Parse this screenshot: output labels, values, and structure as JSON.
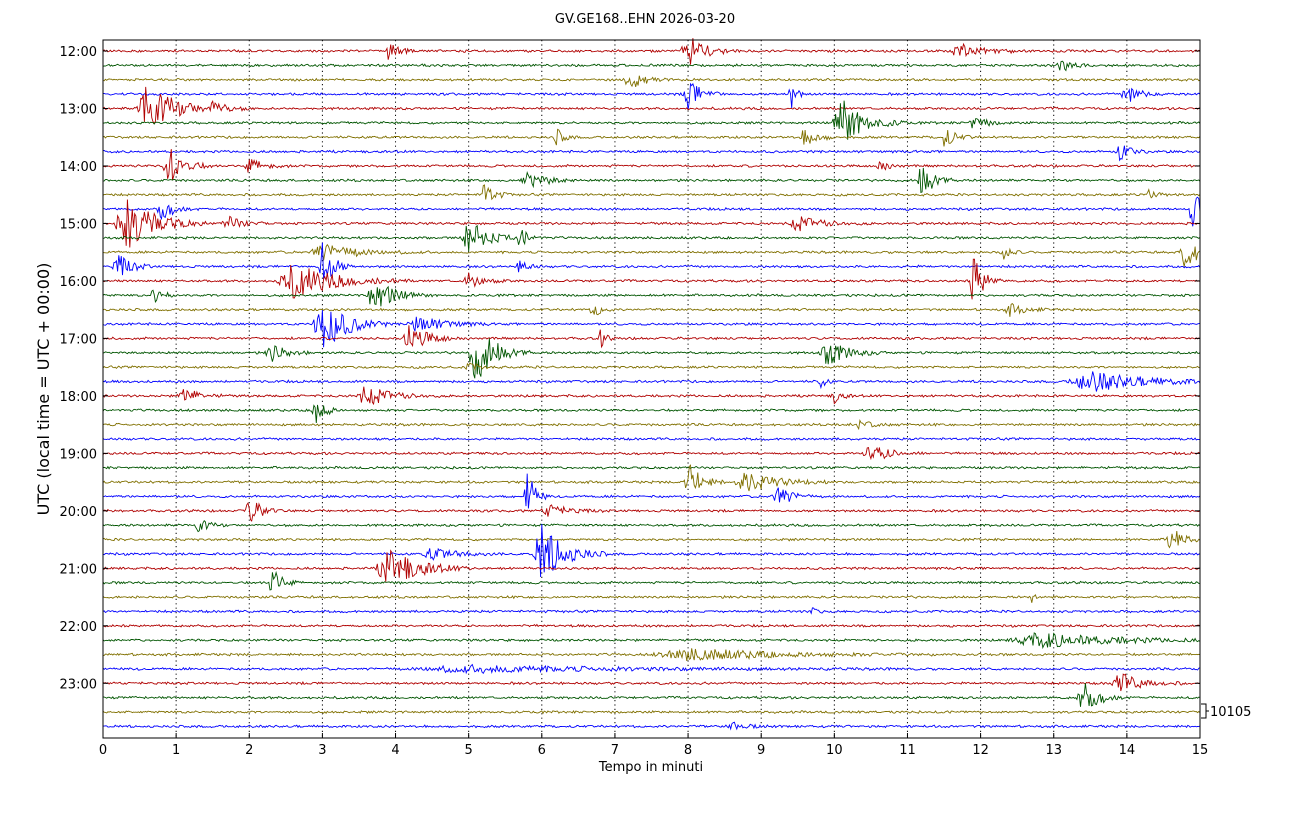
{
  "title": "GV.GE168..EHN 2026-03-20",
  "chart_data": {
    "type": "line",
    "title": "GV.GE168..EHN 2026-03-20",
    "xlabel": "Tempo in minuti",
    "ylabel": "UTC (local time = UTC + 00:00)",
    "xlim": [
      0,
      15
    ],
    "x_ticks": [
      "0",
      "1",
      "2",
      "3",
      "4",
      "5",
      "6",
      "7",
      "8",
      "9",
      "10",
      "11",
      "12",
      "13",
      "14",
      "15"
    ],
    "y_ticks": [
      "12:00",
      "13:00",
      "14:00",
      "15:00",
      "16:00",
      "17:00",
      "18:00",
      "19:00",
      "20:00",
      "21:00",
      "22:00",
      "23:00"
    ],
    "scale_label": "10105",
    "grid": "vertical dotted lines at each minute",
    "trace_minutes": 15,
    "colors": [
      "#b00000",
      "#005500",
      "#807000",
      "#0000ff"
    ],
    "traces": [
      {
        "start": "12:00",
        "color": "#b00000",
        "events": [
          [
            3.9,
            0.3,
            0.4
          ],
          [
            8.0,
            0.6,
            0.7
          ],
          [
            11.7,
            0.25,
            1.0
          ]
        ]
      },
      {
        "start": "12:15",
        "color": "#005500",
        "events": [
          [
            13.1,
            0.25,
            0.4
          ]
        ]
      },
      {
        "start": "12:30",
        "color": "#807000",
        "events": [
          [
            7.2,
            0.35,
            0.6
          ]
        ]
      },
      {
        "start": "12:45",
        "color": "#0000ff",
        "events": [
          [
            8.0,
            0.55,
            0.5
          ],
          [
            9.4,
            0.6,
            0.2
          ],
          [
            14.0,
            0.3,
            0.6
          ]
        ]
      },
      {
        "start": "13:00",
        "color": "#b00000",
        "events": [
          [
            0.6,
            1.0,
            1.0
          ],
          [
            1.5,
            0.25,
            0.6
          ]
        ]
      },
      {
        "start": "13:15",
        "color": "#005500",
        "events": [
          [
            10.1,
            0.85,
            0.9
          ],
          [
            11.9,
            0.25,
            0.5
          ]
        ]
      },
      {
        "start": "13:30",
        "color": "#807000",
        "events": [
          [
            6.2,
            0.3,
            0.3
          ],
          [
            9.6,
            0.35,
            0.5
          ],
          [
            11.5,
            0.3,
            0.5
          ]
        ]
      },
      {
        "start": "13:45",
        "color": "#0000ff",
        "events": [
          [
            13.9,
            0.35,
            0.4
          ]
        ]
      },
      {
        "start": "14:00",
        "color": "#b00000",
        "events": [
          [
            0.9,
            0.7,
            0.6
          ],
          [
            2.0,
            0.25,
            0.6
          ],
          [
            10.6,
            0.2,
            0.4
          ]
        ]
      },
      {
        "start": "14:15",
        "color": "#005500",
        "events": [
          [
            5.8,
            0.35,
            0.7
          ],
          [
            11.2,
            0.65,
            0.5
          ]
        ]
      },
      {
        "start": "14:30",
        "color": "#807000",
        "events": [
          [
            5.2,
            0.45,
            0.4
          ],
          [
            14.3,
            0.2,
            0.3
          ]
        ]
      },
      {
        "start": "14:45",
        "color": "#0000ff",
        "events": [
          [
            0.8,
            0.35,
            0.5
          ],
          [
            14.9,
            0.7,
            0.4
          ]
        ]
      },
      {
        "start": "15:00",
        "color": "#b00000",
        "events": [
          [
            0.3,
            1.0,
            1.1
          ],
          [
            1.7,
            0.25,
            0.6
          ],
          [
            9.5,
            0.25,
            1.0
          ]
        ]
      },
      {
        "start": "15:15",
        "color": "#005500",
        "events": [
          [
            5.0,
            0.6,
            0.8
          ],
          [
            5.7,
            0.35,
            0.3
          ]
        ]
      },
      {
        "start": "15:30",
        "color": "#807000",
        "events": [
          [
            3.0,
            0.25,
            1.5
          ],
          [
            12.3,
            0.3,
            0.3
          ],
          [
            14.8,
            0.6,
            0.5
          ]
        ]
      },
      {
        "start": "15:45",
        "color": "#0000ff",
        "events": [
          [
            0.2,
            0.45,
            0.5
          ],
          [
            3.0,
            1.0,
            0.4
          ],
          [
            5.7,
            0.3,
            0.3
          ]
        ]
      },
      {
        "start": "16:00",
        "color": "#b00000",
        "events": [
          [
            2.6,
            0.6,
            1.6
          ],
          [
            5.0,
            0.25,
            0.6
          ],
          [
            11.9,
            1.0,
            0.4
          ]
        ]
      },
      {
        "start": "16:15",
        "color": "#005500",
        "events": [
          [
            0.7,
            0.45,
            0.3
          ],
          [
            3.7,
            0.55,
            0.8
          ]
        ]
      },
      {
        "start": "16:30",
        "color": "#807000",
        "events": [
          [
            6.7,
            0.3,
            0.3
          ],
          [
            12.4,
            0.2,
            0.6
          ]
        ]
      },
      {
        "start": "16:45",
        "color": "#0000ff",
        "events": [
          [
            3.0,
            1.0,
            0.9
          ],
          [
            4.3,
            0.3,
            1.0
          ]
        ]
      },
      {
        "start": "17:00",
        "color": "#b00000",
        "events": [
          [
            4.2,
            0.5,
            0.7
          ],
          [
            6.8,
            0.35,
            0.2
          ]
        ]
      },
      {
        "start": "17:15",
        "color": "#005500",
        "events": [
          [
            5.1,
            1.0,
            0.8
          ],
          [
            9.9,
            0.45,
            0.8
          ],
          [
            2.3,
            0.3,
            0.6
          ]
        ]
      },
      {
        "start": "17:30",
        "color": "#807000",
        "events": [
          [
            5.0,
            0.15,
            0.4
          ]
        ]
      },
      {
        "start": "17:45",
        "color": "#0000ff",
        "events": [
          [
            9.8,
            0.3,
            0.2
          ],
          [
            13.5,
            0.35,
            2.2
          ]
        ]
      },
      {
        "start": "18:00",
        "color": "#b00000",
        "events": [
          [
            1.1,
            0.3,
            0.6
          ],
          [
            3.6,
            0.35,
            1.0
          ],
          [
            10.0,
            0.25,
            0.3
          ]
        ]
      },
      {
        "start": "18:15",
        "color": "#005500",
        "events": [
          [
            2.9,
            0.85,
            0.3
          ]
        ]
      },
      {
        "start": "18:30",
        "color": "#807000",
        "events": [
          [
            10.3,
            0.15,
            0.6
          ]
        ]
      },
      {
        "start": "18:45",
        "color": "#0000ff",
        "events": []
      },
      {
        "start": "19:00",
        "color": "#b00000",
        "events": [
          [
            10.5,
            0.3,
            0.8
          ]
        ]
      },
      {
        "start": "19:15",
        "color": "#005500",
        "events": []
      },
      {
        "start": "19:30",
        "color": "#807000",
        "events": [
          [
            8.0,
            0.7,
            0.5
          ],
          [
            8.8,
            0.35,
            1.2
          ]
        ]
      },
      {
        "start": "19:45",
        "color": "#0000ff",
        "events": [
          [
            5.8,
            1.0,
            0.3
          ],
          [
            9.2,
            0.45,
            0.5
          ]
        ]
      },
      {
        "start": "20:00",
        "color": "#b00000",
        "events": [
          [
            2.0,
            0.45,
            0.5
          ],
          [
            6.1,
            0.2,
            0.8
          ]
        ]
      },
      {
        "start": "20:15",
        "color": "#005500",
        "events": [
          [
            1.3,
            0.3,
            0.4
          ]
        ]
      },
      {
        "start": "20:30",
        "color": "#807000",
        "events": [
          [
            14.6,
            0.6,
            0.4
          ]
        ]
      },
      {
        "start": "20:45",
        "color": "#0000ff",
        "events": [
          [
            6.0,
            1.0,
            0.9
          ],
          [
            4.5,
            0.2,
            1.0
          ]
        ]
      },
      {
        "start": "21:00",
        "color": "#b00000",
        "events": [
          [
            3.9,
            0.65,
            1.2
          ]
        ]
      },
      {
        "start": "21:15",
        "color": "#005500",
        "events": [
          [
            2.3,
            0.55,
            0.4
          ]
        ]
      },
      {
        "start": "21:30",
        "color": "#807000",
        "events": [
          [
            12.7,
            0.2,
            0.1
          ]
        ]
      },
      {
        "start": "21:45",
        "color": "#0000ff",
        "events": [
          [
            9.7,
            0.15,
            0.2
          ]
        ]
      },
      {
        "start": "22:00",
        "color": "#b00000",
        "events": []
      },
      {
        "start": "22:15",
        "color": "#005500",
        "events": [
          [
            12.8,
            0.25,
            3.0
          ]
        ]
      },
      {
        "start": "22:30",
        "color": "#807000",
        "events": [
          [
            8.0,
            0.2,
            3.5
          ]
        ]
      },
      {
        "start": "22:45",
        "color": "#0000ff",
        "events": [
          [
            5.0,
            0.12,
            6.0
          ]
        ]
      },
      {
        "start": "23:00",
        "color": "#b00000",
        "events": [
          [
            13.9,
            0.35,
            0.9
          ]
        ]
      },
      {
        "start": "23:15",
        "color": "#005500",
        "events": [
          [
            13.4,
            0.55,
            0.6
          ]
        ]
      },
      {
        "start": "23:30",
        "color": "#807000",
        "events": []
      },
      {
        "start": "23:45",
        "color": "#0000ff",
        "events": [
          [
            8.6,
            0.15,
            0.6
          ]
        ]
      }
    ]
  }
}
